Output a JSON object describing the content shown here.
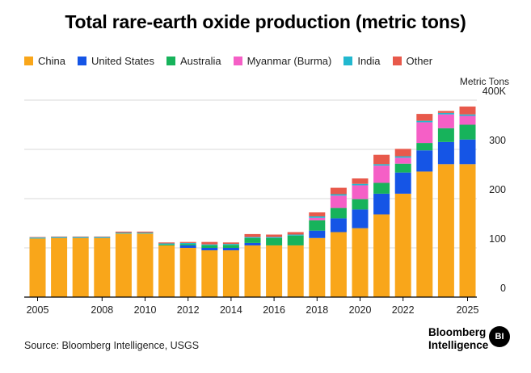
{
  "chart_data": {
    "type": "bar",
    "stacked": true,
    "title": "Total rare-earth oxide production (metric tons)",
    "unit_label": "Metric Tons",
    "y_tick_labels": [
      "400K",
      "300",
      "200",
      "100",
      "0"
    ],
    "y_ticks": [
      400,
      300,
      200,
      100,
      0
    ],
    "ylim": [
      0,
      400
    ],
    "y_scale": "thousands",
    "x_tick_labels": [
      "2005",
      "2008",
      "2010",
      "2012",
      "2014",
      "2016",
      "2018",
      "2020",
      "2022",
      "2025"
    ],
    "x_tick_years": [
      2005,
      2008,
      2010,
      2012,
      2014,
      2016,
      2018,
      2020,
      2022,
      2025
    ],
    "grid": true,
    "legend_position": "top-left",
    "categories": [
      2005,
      2006,
      2007,
      2008,
      2009,
      2010,
      2011,
      2012,
      2013,
      2014,
      2015,
      2016,
      2017,
      2018,
      2019,
      2020,
      2021,
      2022,
      2023,
      2024,
      2025
    ],
    "series": [
      {
        "name": "China",
        "color": "#F9A61A",
        "values": [
          119,
          120,
          120,
          120,
          129,
          129,
          105,
          100,
          95,
          95,
          105,
          105,
          105,
          120,
          132,
          140,
          168,
          210,
          255,
          270,
          270
        ]
      },
      {
        "name": "United States",
        "color": "#1555E6",
        "values": [
          0,
          0,
          0,
          0,
          0,
          0,
          0,
          5,
          5,
          5,
          5,
          0,
          0,
          15,
          28,
          38,
          42,
          43,
          43,
          45,
          50
        ]
      },
      {
        "name": "Australia",
        "color": "#17B35B",
        "values": [
          0,
          0,
          0,
          0,
          0,
          0,
          2,
          3,
          5,
          6,
          10,
          15,
          20,
          21,
          21,
          21,
          22,
          18,
          15,
          28,
          30
        ]
      },
      {
        "name": "Myanmar (Burma)",
        "color": "#F55FC6",
        "values": [
          0,
          0,
          0,
          0,
          0,
          0,
          0,
          0,
          0,
          0,
          0,
          0,
          0,
          5,
          25,
          28,
          35,
          12,
          42,
          28,
          18
        ]
      },
      {
        "name": "India",
        "color": "#22B8CF",
        "values": [
          2,
          2,
          2,
          2,
          2,
          2,
          2,
          2,
          2,
          2,
          2,
          2,
          2,
          3,
          3,
          3,
          3,
          3,
          3,
          3,
          3
        ]
      },
      {
        "name": "Other",
        "color": "#E8594B",
        "values": [
          1,
          1,
          1,
          1,
          2,
          2,
          2,
          2,
          5,
          3,
          6,
          5,
          5,
          8,
          13,
          11,
          19,
          15,
          14,
          4,
          16
        ]
      }
    ]
  },
  "footer": {
    "source": "Source: Bloomberg Intelligence, USGS",
    "brand_line1": "Bloomberg",
    "brand_line2": "Intelligence",
    "badge": "BI"
  }
}
